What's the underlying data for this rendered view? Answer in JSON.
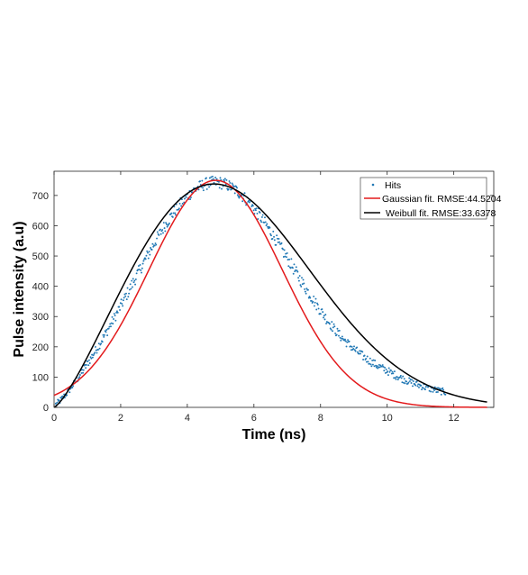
{
  "chart_data": {
    "type": "scatter",
    "xlabel": "Time (ns)",
    "ylabel": "Pulse intensity (a.u)",
    "xlim": [
      0,
      13.2
    ],
    "ylim": [
      0,
      780
    ],
    "xticks": [
      0,
      2,
      4,
      6,
      8,
      10,
      12
    ],
    "yticks": [
      0,
      100,
      200,
      300,
      400,
      500,
      600,
      700
    ],
    "legend_position": "top-right",
    "grid": false,
    "series": [
      {
        "name": "Hits",
        "kind": "scatter",
        "color": "#1f77b4",
        "x_start": 0.05,
        "x_end": 11.75,
        "noise_amplitude": 20,
        "approx_peak": 735
      },
      {
        "name": "Gaussian fit. RMSE:44.5204",
        "kind": "line",
        "color": "#e31a1c",
        "x_start": 0,
        "x_end": 13,
        "amplitude": 750,
        "mean": 4.85,
        "sigma": 2.0
      },
      {
        "name": "Weibull fit. RMSE:33.6378",
        "kind": "line",
        "color": "#000000",
        "x_start": 0,
        "x_end": 13,
        "scale": 6.15,
        "shape": 2.3,
        "peak": 738
      }
    ]
  }
}
